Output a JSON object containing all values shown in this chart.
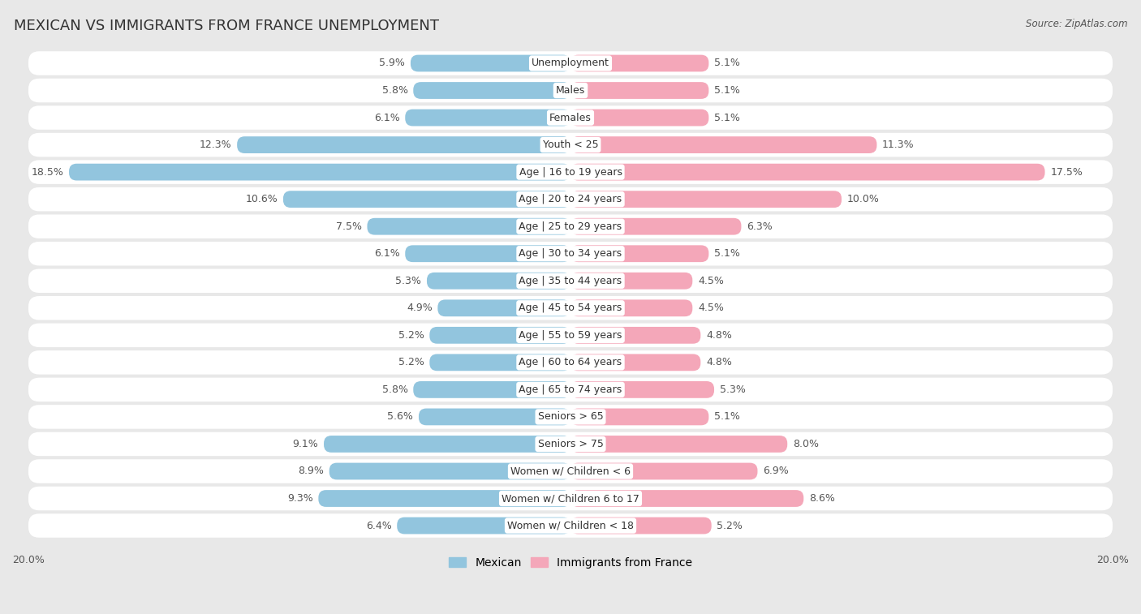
{
  "title": "MEXICAN VS IMMIGRANTS FROM FRANCE UNEMPLOYMENT",
  "source": "Source: ZipAtlas.com",
  "categories": [
    "Unemployment",
    "Males",
    "Females",
    "Youth < 25",
    "Age | 16 to 19 years",
    "Age | 20 to 24 years",
    "Age | 25 to 29 years",
    "Age | 30 to 34 years",
    "Age | 35 to 44 years",
    "Age | 45 to 54 years",
    "Age | 55 to 59 years",
    "Age | 60 to 64 years",
    "Age | 65 to 74 years",
    "Seniors > 65",
    "Seniors > 75",
    "Women w/ Children < 6",
    "Women w/ Children 6 to 17",
    "Women w/ Children < 18"
  ],
  "mexican": [
    5.9,
    5.8,
    6.1,
    12.3,
    18.5,
    10.6,
    7.5,
    6.1,
    5.3,
    4.9,
    5.2,
    5.2,
    5.8,
    5.6,
    9.1,
    8.9,
    9.3,
    6.4
  ],
  "france": [
    5.1,
    5.1,
    5.1,
    11.3,
    17.5,
    10.0,
    6.3,
    5.1,
    4.5,
    4.5,
    4.8,
    4.8,
    5.3,
    5.1,
    8.0,
    6.9,
    8.6,
    5.2
  ],
  "mexican_color": "#92c5de",
  "france_color": "#f4a7b9",
  "max_val": 20.0,
  "outer_bg": "#e8e8e8",
  "row_bg": "#ffffff",
  "title_fontsize": 13,
  "value_fontsize": 9,
  "cat_fontsize": 9,
  "legend_fontsize": 10,
  "tick_fontsize": 9
}
